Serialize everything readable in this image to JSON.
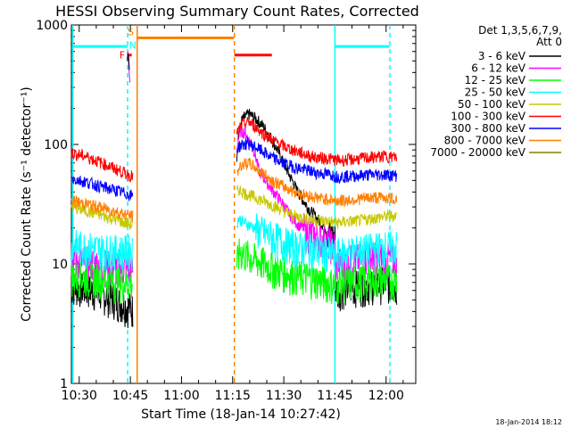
{
  "chart_data": {
    "type": "line",
    "title": "HESSI Observing Summary Count Rates, Corrected",
    "xlabel": "Start Time (18-Jan-14 10:27:42)",
    "ylabel": "Corrected Count Rate (s⁻¹ detector⁻¹)",
    "x_unit": "minutes after 10:27:42",
    "xlim": [
      0,
      101
    ],
    "ylim": [
      1,
      1000
    ],
    "yscale": "log",
    "xticks": [
      {
        "x": 2.3,
        "label": "10:30"
      },
      {
        "x": 17.3,
        "label": "10:45"
      },
      {
        "x": 32.3,
        "label": "11:00"
      },
      {
        "x": 47.3,
        "label": "11:15"
      },
      {
        "x": 62.3,
        "label": "11:30"
      },
      {
        "x": 77.3,
        "label": "11:45"
      },
      {
        "x": 92.3,
        "label": "12:00"
      }
    ],
    "yticks": [
      {
        "y": 1,
        "label": "1"
      },
      {
        "y": 10,
        "label": "10"
      },
      {
        "y": 100,
        "label": "100"
      },
      {
        "y": 1000,
        "label": "1000"
      }
    ],
    "legend_header": [
      "Det 1,3,5,6,7,9,",
      "Att 0"
    ],
    "legend_position": "right",
    "series": [
      {
        "name": "3 - 6 keV",
        "color": "#000000",
        "segments": [
          {
            "x": [
              0,
              4,
              8,
              12,
              16,
              18
            ],
            "y": [
              6.5,
              6.3,
              5.8,
              5.2,
              4.5,
              4.2
            ]
          },
          {
            "x": [
              48.5,
              49,
              50,
              52,
              54,
              56,
              58,
              60,
              62,
              64,
              66,
              68,
              70,
              72,
              74,
              76,
              77,
              77.5
            ],
            "y": [
              80,
              120,
              160,
              180,
              165,
              145,
              120,
              95,
              72,
              55,
              42,
              34,
              28,
              24,
              21,
              18,
              17,
              16
            ]
          },
          {
            "x": [
              77.3,
              80,
              84,
              88,
              92,
              95.5
            ],
            "y": [
              6,
              6.3,
              6.6,
              6.8,
              7,
              6.5
            ]
          }
        ]
      },
      {
        "name": "6 - 12 keV",
        "color": "#ff00ff",
        "segments": [
          {
            "x": [
              0,
              4,
              8,
              12,
              16,
              18
            ],
            "y": [
              11,
              10.5,
              10,
              9.5,
              9.3,
              9
            ]
          },
          {
            "x": [
              48.5,
              49.5,
              51,
              52,
              53,
              54,
              55,
              56,
              58,
              60,
              62,
              64,
              66,
              68,
              70,
              72,
              74,
              76,
              77.5
            ],
            "y": [
              90,
              130,
              125,
              110,
              100,
              80,
              60,
              55,
              45,
              38,
              32,
              26,
              22,
              20,
              18,
              17,
              16,
              15,
              14
            ]
          },
          {
            "x": [
              77.3,
              80,
              84,
              88,
              92,
              95.5
            ],
            "y": [
              10,
              10.5,
              11,
              11.5,
              11.2,
              10.5
            ]
          }
        ]
      },
      {
        "name": "12 - 25 keV",
        "color": "#00ff00",
        "segments": [
          {
            "x": [
              0,
              4,
              8,
              12,
              16,
              18
            ],
            "y": [
              8,
              7.8,
              7.5,
              7.2,
              7,
              7
            ]
          },
          {
            "x": [
              48.5,
              49.5,
              51,
              54,
              57,
              60,
              63,
              66,
              69,
              72,
              75,
              77.5
            ],
            "y": [
              10,
              13,
              12,
              11,
              10,
              9,
              8.5,
              8,
              7.8,
              7.5,
              7,
              6.8
            ]
          },
          {
            "x": [
              77.3,
              80,
              84,
              88,
              92,
              95.5
            ],
            "y": [
              6.8,
              7,
              7.2,
              7.5,
              7.5,
              7.3
            ]
          }
        ]
      },
      {
        "name": "25 - 50 keV",
        "color": "#00ffff",
        "segments": [
          {
            "x": [
              0,
              4,
              8,
              12,
              16,
              18
            ],
            "y": [
              14.5,
              14,
              13.5,
              13,
              13,
              13
            ]
          },
          {
            "x": [
              48.5,
              49,
              51,
              54,
              57,
              60,
              63,
              66,
              69,
              72,
              75,
              77.5
            ],
            "y": [
              22,
              24,
              22,
              20,
              18,
              16.5,
              15,
              14,
              13.5,
              13,
              12.5,
              12
            ]
          },
          {
            "x": [
              77.3,
              80,
              84,
              88,
              92,
              95.5
            ],
            "y": [
              12,
              12.5,
              13,
              13.5,
              14,
              14
            ]
          }
        ]
      },
      {
        "name": "50 - 100 keV",
        "color": "#c8c800",
        "segments": [
          {
            "x": [
              0,
              4,
              8,
              12,
              16,
              18
            ],
            "y": [
              30,
              28,
              26,
              24,
              22,
              21
            ]
          },
          {
            "x": [
              48.5,
              49,
              51,
              54,
              57,
              60,
              63,
              66,
              69,
              72,
              75,
              77.5
            ],
            "y": [
              40,
              42,
              39,
              36,
              33,
              30,
              27,
              25,
              24,
              23,
              23,
              22
            ]
          },
          {
            "x": [
              77.3,
              80,
              84,
              88,
              92,
              95.5
            ],
            "y": [
              22,
              22.5,
              23,
              24,
              25,
              25.5
            ]
          }
        ]
      },
      {
        "name": "100 - 300 keV",
        "color": "#ff0000",
        "segments": [
          {
            "x": [
              0,
              4,
              8,
              12,
              16,
              18
            ],
            "y": [
              85,
              80,
              72,
              64,
              57,
              54
            ]
          },
          {
            "x": [
              48.5,
              49,
              50,
              52,
              54,
              56,
              58,
              60,
              62,
              64,
              66,
              68,
              70,
              72,
              74,
              76,
              77.5
            ],
            "y": [
              120,
              130,
              145,
              155,
              140,
              125,
              115,
              105,
              98,
              92,
              88,
              84,
              80,
              78,
              77,
              76,
              75
            ]
          },
          {
            "x": [
              77.3,
              80,
              84,
              88,
              92,
              95.5
            ],
            "y": [
              74,
              74,
              76,
              78,
              80,
              78
            ]
          }
        ]
      },
      {
        "name": "300 - 800 keV",
        "color": "#0000ff",
        "segments": [
          {
            "x": [
              0,
              4,
              8,
              12,
              16,
              18
            ],
            "y": [
              52,
              49,
              45,
              42,
              39,
              37
            ]
          },
          {
            "x": [
              48.5,
              49,
              50,
              52,
              54,
              56,
              58,
              60,
              62,
              64,
              66,
              68,
              70,
              72,
              74,
              76,
              77.5
            ],
            "y": [
              90,
              95,
              100,
              102,
              95,
              88,
              80,
              75,
              70,
              67,
              64,
              62,
              60,
              58,
              57,
              56,
              55
            ]
          },
          {
            "x": [
              77.3,
              80,
              84,
              88,
              92,
              95.5
            ],
            "y": [
              54,
              54,
              55,
              56,
              56,
              55
            ]
          }
        ]
      },
      {
        "name": "800 - 7000 keV",
        "color": "#ff8000",
        "segments": [
          {
            "x": [
              0,
              4,
              8,
              12,
              16,
              18
            ],
            "y": [
              34,
              32,
              30,
              28,
              26,
              25
            ]
          },
          {
            "x": [
              48.5,
              49,
              50,
              52,
              54,
              56,
              58,
              60,
              62,
              64,
              66,
              68,
              70,
              72,
              74,
              76,
              77.5
            ],
            "y": [
              55,
              62,
              68,
              70,
              64,
              58,
              52,
              48,
              45,
              42,
              40,
              38,
              37,
              36,
              35,
              35,
              34
            ]
          },
          {
            "x": [
              77.3,
              80,
              84,
              88,
              92,
              95.5
            ],
            "y": [
              34,
              34,
              35,
              36,
              36,
              35
            ]
          }
        ]
      },
      {
        "name": "7000 - 20000 keV",
        "color": "#808000",
        "segments": []
      }
    ],
    "spikes": [
      {
        "color": "#ff00ff",
        "x": [
          16.4,
          16.6,
          16.8,
          17.0,
          17.2
        ],
        "y": [
          520,
          600,
          460,
          380,
          330
        ]
      },
      {
        "color": "#000000",
        "x": [
          16.4,
          16.6,
          16.8,
          17.0
        ],
        "y": [
          500,
          580,
          540,
          420
        ]
      }
    ],
    "flag_bars": [
      {
        "color": "#00ffff",
        "x0": 0.5,
        "x1": 16.5,
        "y": 660
      },
      {
        "color": "#ff8000",
        "x0": 19.3,
        "x1": 47.7,
        "y": 780
      },
      {
        "color": "#ff0000",
        "x0": 47.8,
        "x1": 58.8,
        "y": 560
      },
      {
        "color": "#00ffff",
        "x0": 77.3,
        "x1": 93.3,
        "y": 660
      },
      {
        "color": "#ff0000",
        "x0": 16.4,
        "x1": 17.7,
        "y": 560
      }
    ],
    "flag_labels": [
      {
        "text": "F",
        "color": "#ff0000",
        "x": 14.9,
        "y": 560
      },
      {
        "text": "S",
        "color": "#ff8000",
        "x": 17.4,
        "y": 880
      },
      {
        "text": "N",
        "color": "#00ffff",
        "x": 18.0,
        "y": 680
      }
    ],
    "vlines": [
      {
        "x": 0.4,
        "color": "#00ffff",
        "style": "solid"
      },
      {
        "x": 16.5,
        "color": "#00ffff",
        "style": "dashed"
      },
      {
        "x": 19.3,
        "color": "#ff8000",
        "style": "solid"
      },
      {
        "x": 47.8,
        "color": "#ff8000",
        "style": "dashed"
      },
      {
        "x": 77.3,
        "color": "#00ffff",
        "style": "solid"
      },
      {
        "x": 93.4,
        "color": "#00ffff",
        "style": "dashed"
      }
    ]
  },
  "footer_timestamp": "18-Jan-2014 18:12"
}
